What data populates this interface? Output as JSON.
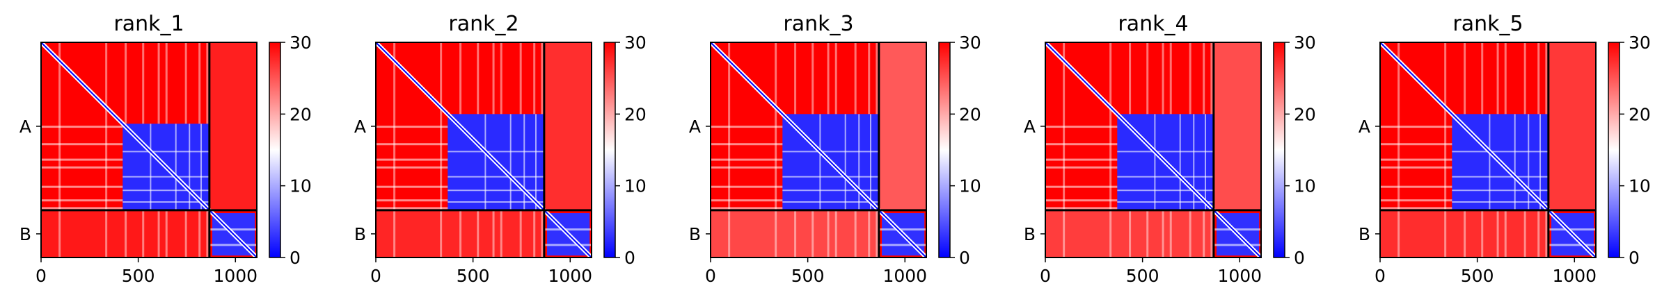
{
  "chart_data": {
    "type": "heatmap",
    "panel_titles": [
      "rank_1",
      "rank_2",
      "rank_3",
      "rank_4",
      "rank_5"
    ],
    "x_ticks": [
      0,
      500,
      1000
    ],
    "x_range": [
      0,
      1110
    ],
    "y_range": [
      0,
      1110
    ],
    "chain_labels": [
      "A",
      "B"
    ],
    "chain_boundary": 866,
    "chain_label_positions": [
      433,
      988
    ],
    "colorbar": {
      "ticks": [
        0,
        10,
        20,
        30
      ],
      "range": [
        0,
        30
      ]
    },
    "colormap": [
      "#0000ff",
      "#ffffff",
      "#ff0000"
    ],
    "chain_a_core": [
      [
        420,
        866
      ],
      [
        370,
        866
      ],
      [
        370,
        866
      ],
      [
        370,
        866
      ],
      [
        370,
        866
      ]
    ],
    "chain_b_core": [
      [
        866,
        1110
      ],
      [
        866,
        1110
      ],
      [
        866,
        1110
      ],
      [
        866,
        1110
      ],
      [
        866,
        1110
      ]
    ],
    "interface_band": [
      [
        866,
        1110
      ],
      [
        866,
        1110
      ],
      [
        866,
        1110
      ],
      [
        866,
        1110
      ],
      [
        866,
        1110
      ]
    ],
    "interface_level": [
      0.12,
      0.18,
      0.35,
      0.3,
      0.22
    ],
    "stripes": [
      90,
      330,
      430,
      520,
      600,
      640,
      740,
      810,
      850
    ],
    "grid": false
  }
}
